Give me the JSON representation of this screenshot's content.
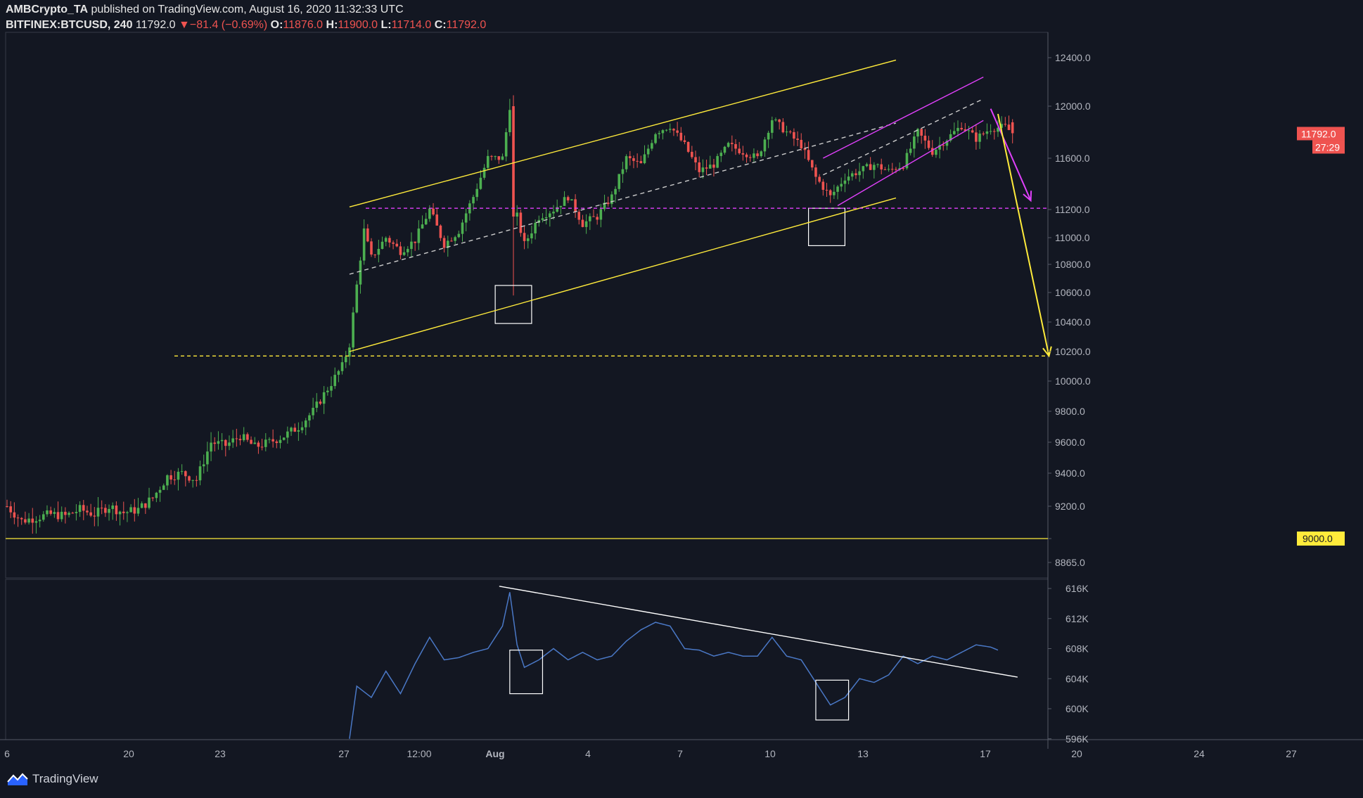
{
  "header": {
    "author": "AMBCrypto_TA",
    "published_text": "published on TradingView.com, August 16, 2020 11:32:33 UTC",
    "symbol": "BITFINEX:BTCUSD, 240",
    "last": "11792.0",
    "change": "▼−81.4 (−0.69%)",
    "o_label": "O:",
    "o": "11876.0",
    "h_label": "H:",
    "h": "11900.0",
    "l_label": "L:",
    "l": "11714.0",
    "c_label": "C:",
    "c": "11792.0"
  },
  "footer": {
    "brand": "TradingView",
    "logo_icon": "tradingview-logo-icon"
  },
  "colors": {
    "background": "#131722",
    "bull": "#4caf50",
    "bear": "#ef5350",
    "yellow": "#ffeb3b",
    "magenta": "#e040fb",
    "oscillator": "#4a78c6",
    "axis_text": "#b2b5be"
  },
  "chart_data": [
    {
      "type": "candlestick",
      "title": "BITFINEX:BTCUSD, 240",
      "ylim": [
        8865,
        12480
      ],
      "y_ticks": [
        "12400.0",
        "12000.0",
        "11600.0",
        "11200.0",
        "11000.0",
        "10800.0",
        "10600.0",
        "10400.0",
        "10200.0",
        "10000.0",
        "9800.0",
        "9600.0",
        "9400.0",
        "9200.0",
        "9000.0",
        "8865.0"
      ],
      "x_ticks": [
        "6",
        "20",
        "23",
        "27",
        "12:00",
        "Aug",
        "4",
        "7",
        "10",
        "13",
        "17",
        "20",
        "24",
        "27"
      ],
      "price_labels": [
        {
          "text": "11792.0",
          "value": 11792,
          "color": "#ef5350"
        },
        {
          "text": "27:29",
          "color": "#ef5350"
        },
        {
          "text": "9000.0",
          "value": 9000,
          "color": "#ffeb3b"
        }
      ],
      "close_anchors": [
        [
          0,
          9200
        ],
        [
          4,
          9110
        ],
        [
          8,
          9130
        ],
        [
          12,
          9150
        ],
        [
          16,
          9140
        ],
        [
          20,
          9180
        ],
        [
          24,
          9150
        ],
        [
          28,
          9200
        ],
        [
          32,
          9160
        ],
        [
          36,
          9180
        ],
        [
          40,
          9250
        ],
        [
          44,
          9380
        ],
        [
          48,
          9400
        ],
        [
          52,
          9360
        ],
        [
          56,
          9600
        ],
        [
          60,
          9580
        ],
        [
          64,
          9640
        ],
        [
          68,
          9570
        ],
        [
          72,
          9600
        ],
        [
          76,
          9640
        ],
        [
          80,
          9700
        ],
        [
          84,
          9800
        ],
        [
          88,
          9950
        ],
        [
          92,
          10100
        ],
        [
          94,
          10250
        ],
        [
          96,
          10650
        ],
        [
          98,
          11050
        ],
        [
          100,
          10850
        ],
        [
          104,
          11000
        ],
        [
          108,
          10900
        ],
        [
          112,
          10980
        ],
        [
          116,
          11200
        ],
        [
          120,
          10950
        ],
        [
          124,
          11050
        ],
        [
          128,
          11300
        ],
        [
          132,
          11600
        ],
        [
          136,
          11600
        ],
        [
          138,
          12000
        ],
        [
          140,
          11150
        ],
        [
          142,
          10950
        ],
        [
          146,
          11150
        ],
        [
          150,
          11200
        ],
        [
          154,
          11300
        ],
        [
          158,
          11100
        ],
        [
          162,
          11150
        ],
        [
          166,
          11300
        ],
        [
          170,
          11600
        ],
        [
          174,
          11550
        ],
        [
          178,
          11800
        ],
        [
          182,
          11850
        ],
        [
          186,
          11700
        ],
        [
          190,
          11500
        ],
        [
          194,
          11550
        ],
        [
          198,
          11700
        ],
        [
          202,
          11650
        ],
        [
          206,
          11600
        ],
        [
          210,
          11900
        ],
        [
          214,
          11800
        ],
        [
          218,
          11700
        ],
        [
          222,
          11450
        ],
        [
          226,
          11300
        ],
        [
          230,
          11450
        ],
        [
          234,
          11500
        ],
        [
          238,
          11550
        ],
        [
          242,
          11500
        ],
        [
          246,
          11550
        ],
        [
          250,
          11800
        ],
        [
          254,
          11650
        ],
        [
          258,
          11750
        ],
        [
          262,
          11850
        ],
        [
          266,
          11750
        ],
        [
          270,
          11830
        ],
        [
          274,
          11840
        ],
        [
          276,
          11792
        ]
      ],
      "zones": [
        {
          "color": "#ffffff",
          "x": [
            134,
            144
          ],
          "y": [
            10390,
            10650
          ]
        },
        {
          "color": "#ffffff",
          "x": [
            220,
            230
          ],
          "y": [
            10940,
            11210
          ]
        }
      ],
      "annotations": [
        {
          "kind": "channel_upper",
          "color": "#ffeb3b",
          "from": [
            94,
            11220
          ],
          "to": [
            244,
            12380
          ]
        },
        {
          "kind": "channel_lower",
          "color": "#ffeb3b",
          "from": [
            94,
            10200
          ],
          "to": [
            244,
            11290
          ]
        },
        {
          "kind": "channel_mid",
          "color": "#cccccc",
          "dashed": true,
          "from": [
            94,
            10730
          ],
          "to": [
            244,
            11870
          ]
        },
        {
          "kind": "rising_wedge_upper",
          "color": "#e040fb",
          "from": [
            224,
            11600
          ],
          "to": [
            268,
            12240
          ]
        },
        {
          "kind": "rising_wedge_lower",
          "color": "#e040fb",
          "from": [
            228,
            11230
          ],
          "to": [
            268,
            11890
          ]
        },
        {
          "kind": "wedge_mid",
          "color": "#cccccc",
          "dashed": true,
          "from": [
            224,
            11470
          ],
          "to": [
            268,
            12060
          ]
        },
        {
          "kind": "support",
          "color": "#e040fb",
          "dashed": true,
          "value": 11210
        },
        {
          "kind": "target",
          "color": "#ffeb3b",
          "dashed": true,
          "value": 10170
        },
        {
          "kind": "support",
          "color": "#ffeb3b",
          "value": 9000
        },
        {
          "kind": "arrow",
          "color": "#e040fb",
          "from": [
            270,
            11980
          ],
          "to": [
            281,
            11270
          ]
        },
        {
          "kind": "arrow",
          "color": "#ffeb3b",
          "from": [
            272,
            11940
          ],
          "to": [
            286,
            10170
          ]
        }
      ]
    },
    {
      "type": "line",
      "ylim": [
        596000,
        617000
      ],
      "y_ticks": [
        "616K",
        "612K",
        "608K",
        "604K",
        "600K",
        "596K"
      ],
      "series": [
        {
          "values_anchors": [
            [
              94,
              596000
            ],
            [
              96,
              603000
            ],
            [
              100,
              601500
            ],
            [
              104,
              605000
            ],
            [
              108,
              602000
            ],
            [
              112,
              606000
            ],
            [
              116,
              609500
            ],
            [
              120,
              606500
            ],
            [
              124,
              606800
            ],
            [
              128,
              607500
            ],
            [
              132,
              608000
            ],
            [
              136,
              611000
            ],
            [
              138,
              615500
            ],
            [
              140,
              608500
            ],
            [
              142,
              605500
            ],
            [
              146,
              606500
            ],
            [
              150,
              608000
            ],
            [
              154,
              606500
            ],
            [
              158,
              607500
            ],
            [
              162,
              606500
            ],
            [
              166,
              607000
            ],
            [
              170,
              609000
            ],
            [
              174,
              610500
            ],
            [
              178,
              611500
            ],
            [
              182,
              611000
            ],
            [
              186,
              608000
            ],
            [
              190,
              607800
            ],
            [
              194,
              607000
            ],
            [
              198,
              607500
            ],
            [
              202,
              607000
            ],
            [
              206,
              607000
            ],
            [
              210,
              609500
            ],
            [
              214,
              607000
            ],
            [
              218,
              606500
            ],
            [
              222,
              603500
            ],
            [
              226,
              600500
            ],
            [
              230,
              601500
            ],
            [
              234,
              604000
            ],
            [
              238,
              603500
            ],
            [
              242,
              604500
            ],
            [
              246,
              607000
            ],
            [
              250,
              606000
            ],
            [
              254,
              607000
            ],
            [
              258,
              606500
            ],
            [
              262,
              607500
            ],
            [
              266,
              608500
            ],
            [
              270,
              608200
            ],
            [
              272,
              607800
            ]
          ]
        }
      ],
      "zones": [
        {
          "color": "#ffffff",
          "x": [
            138,
            147
          ],
          "y": [
            602000,
            607800
          ]
        },
        {
          "color": "#ffffff",
          "x": [
            222,
            231
          ],
          "y": [
            598500,
            603800
          ]
        }
      ],
      "annotations": [
        {
          "kind": "trendline",
          "color": "#ffffff",
          "from": [
            138,
            616300
          ],
          "to": [
            288,
            604200
          ]
        }
      ]
    }
  ]
}
